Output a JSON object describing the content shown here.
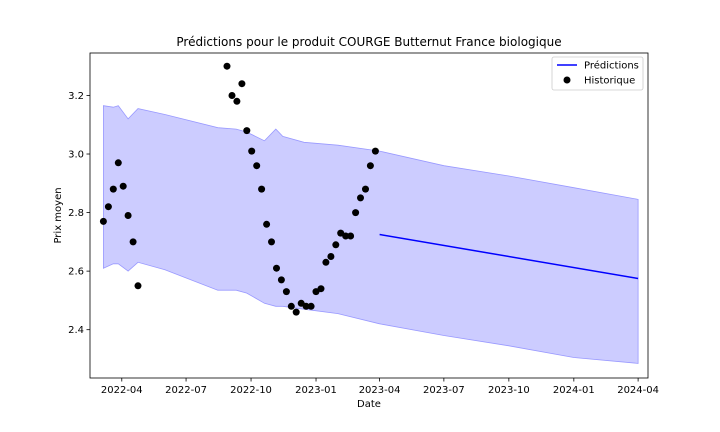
{
  "chart_data": {
    "type": "line",
    "title": "Prédictions pour le produit COURGE Butternut France biologique",
    "xlabel": "Date",
    "ylabel": "Prix moyen",
    "xlim": [
      "2022-02-15",
      "2024-04-15"
    ],
    "ylim": [
      2.235,
      3.345
    ],
    "x_ticks": [
      "2022-04",
      "2022-07",
      "2022-10",
      "2023-01",
      "2023-04",
      "2023-07",
      "2023-10",
      "2024-01",
      "2024-04"
    ],
    "y_ticks": [
      2.4,
      2.6,
      2.8,
      3.0,
      3.2
    ],
    "y_tick_labels": [
      "2.4",
      "2.6",
      "2.8",
      "3.0",
      "3.2"
    ],
    "grid": false,
    "legend_position": "top-right",
    "series": [
      {
        "name": "Prédictions",
        "kind": "line",
        "color": "#0000ff",
        "x": [
          "2023-04-01",
          "2024-04-01"
        ],
        "y": [
          2.725,
          2.575
        ]
      },
      {
        "name": "Historique",
        "kind": "scatter",
        "color": "#000000",
        "x": [
          "2022-03-06",
          "2022-03-13",
          "2022-03-20",
          "2022-03-27",
          "2022-04-03",
          "2022-04-10",
          "2022-04-17",
          "2022-04-24",
          "2022-08-28",
          "2022-09-04",
          "2022-09-11",
          "2022-09-18",
          "2022-09-25",
          "2022-10-02",
          "2022-10-09",
          "2022-10-16",
          "2022-10-23",
          "2022-10-30",
          "2022-11-06",
          "2022-11-13",
          "2022-11-20",
          "2022-11-27",
          "2022-12-04",
          "2022-12-11",
          "2022-12-18",
          "2022-12-25",
          "2023-01-01",
          "2023-01-08",
          "2023-01-15",
          "2023-01-22",
          "2023-01-29",
          "2023-02-05",
          "2023-02-12",
          "2023-02-19",
          "2023-02-26",
          "2023-03-05",
          "2023-03-12",
          "2023-03-19",
          "2023-03-26"
        ],
        "y": [
          2.77,
          2.82,
          2.88,
          2.97,
          2.89,
          2.79,
          2.7,
          2.55,
          3.3,
          3.2,
          3.18,
          3.24,
          3.08,
          3.01,
          2.96,
          2.88,
          2.76,
          2.7,
          2.61,
          2.57,
          2.53,
          2.48,
          2.46,
          2.49,
          2.48,
          2.48,
          2.53,
          2.54,
          2.63,
          2.65,
          2.69,
          2.73,
          2.72,
          2.72,
          2.8,
          2.85,
          2.88,
          2.96,
          3.01
        ]
      }
    ],
    "band": {
      "color": "#ccccff",
      "edge_color": "#9999ff",
      "x": [
        "2022-03-06",
        "2022-03-20",
        "2022-03-27",
        "2022-04-10",
        "2022-04-24",
        "2022-06-01",
        "2022-08-15",
        "2022-09-10",
        "2022-09-25",
        "2022-10-20",
        "2022-11-05",
        "2022-11-15",
        "2022-12-15",
        "2023-02-01",
        "2023-04-01",
        "2023-07-01",
        "2023-10-01",
        "2024-01-01",
        "2024-04-01"
      ],
      "upper": [
        3.165,
        3.16,
        3.165,
        3.12,
        3.155,
        3.135,
        3.09,
        3.085,
        3.075,
        3.045,
        3.085,
        3.06,
        3.04,
        3.03,
        3.01,
        2.96,
        2.925,
        2.885,
        2.845
      ],
      "lower": [
        2.61,
        2.625,
        2.625,
        2.6,
        2.63,
        2.605,
        2.535,
        2.535,
        2.525,
        2.49,
        2.48,
        2.48,
        2.47,
        2.455,
        2.42,
        2.38,
        2.345,
        2.305,
        2.285
      ]
    }
  }
}
